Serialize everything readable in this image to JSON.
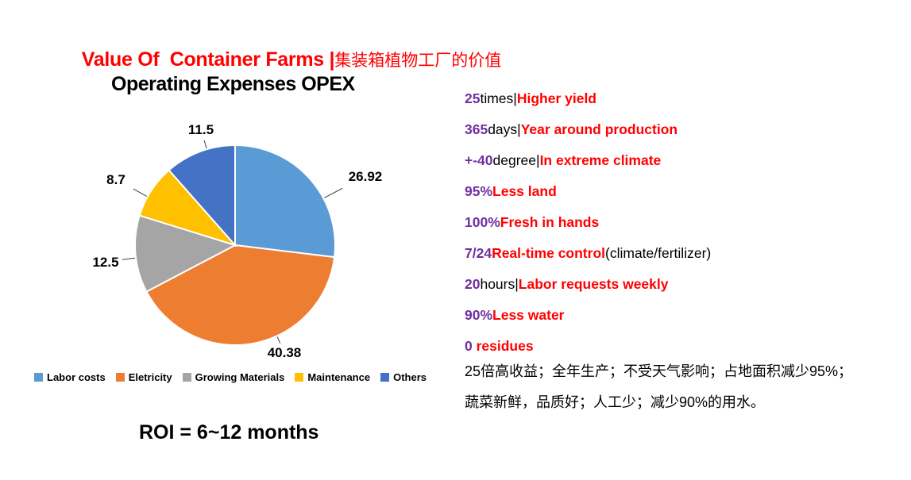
{
  "title": {
    "en": "Value Of  Container Farms |",
    "zh": "集装箱植物工厂的价值"
  },
  "chart_data": {
    "type": "pie",
    "title": "Operating Expenses OPEX",
    "start_angle_deg": 0,
    "direction": "clockwise",
    "legend_position": "bottom",
    "total": 100,
    "slices": [
      {
        "label": "Labor costs",
        "value": 26.92,
        "display": "26.92",
        "color": "#5B9BD5"
      },
      {
        "label": "Eletricity",
        "value": 40.38,
        "display": "40.38",
        "color": "#ED7D31"
      },
      {
        "label": "Growing Materials",
        "value": 12.5,
        "display": "12.5",
        "color": "#A5A5A5"
      },
      {
        "label": "Maintenance",
        "value": 8.7,
        "display": "8.7",
        "color": "#FFC000"
      },
      {
        "label": "Others",
        "value": 11.5,
        "display": "11.5",
        "color": "#4472C4"
      }
    ]
  },
  "roi_note": "ROI = 6~12 months",
  "benefits": [
    {
      "num": "25",
      "mid": "times|",
      "highlight": "Higher yield",
      "suffix": ""
    },
    {
      "num": "365",
      "mid": "days|",
      "highlight": "Year around production",
      "suffix": ""
    },
    {
      "num": "+-40",
      "mid": "degree|",
      "highlight": "In extreme climate",
      "suffix": ""
    },
    {
      "num": "95%",
      "mid": "",
      "highlight": "Less land",
      "suffix": ""
    },
    {
      "num": "100%",
      "mid": "",
      "highlight": "Fresh in hands",
      "suffix": ""
    },
    {
      "num": "7/24",
      "mid": "",
      "highlight": "Real-time control",
      "suffix": "(climate/fertilizer)"
    },
    {
      "num": "20",
      "mid": "hours|",
      "highlight": "Labor requests weekly",
      "suffix": ""
    },
    {
      "num": "90%",
      "mid": "",
      "highlight": "Less water",
      "suffix": ""
    },
    {
      "num": "0 ",
      "mid": "",
      "highlight": "residues",
      "suffix": ""
    }
  ],
  "summary_zh": [
    "25倍高收益；全年生产；不受天气影响；占地面积减少95%；",
    "蔬菜新鲜，品质好；人工少；减少90%的用水。"
  ],
  "colors": {
    "accent_red": "#ff0000",
    "accent_purple": "#7030a0",
    "text": "#000000",
    "background": "#ffffff"
  }
}
